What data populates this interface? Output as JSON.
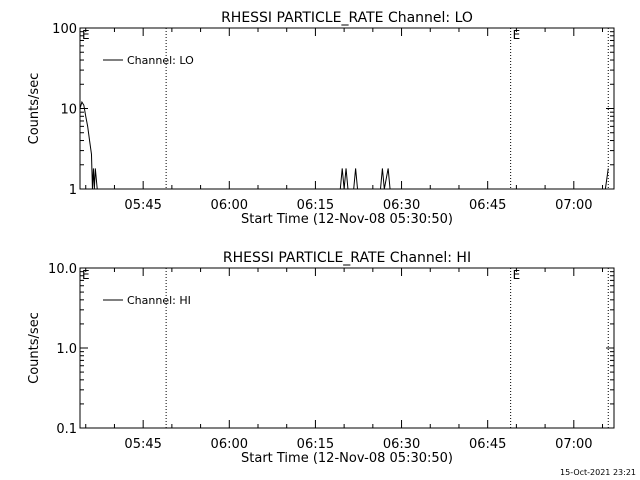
{
  "footer": {
    "timestamp": "15-Oct-2021 23:21"
  },
  "chart_data": [
    {
      "type": "line",
      "title": "RHESSI PARTICLE_RATE Channel: LO",
      "xlabel": "Start Time (12-Nov-08 05:30:50)",
      "ylabel": "Counts/sec",
      "x_ticks": [
        "05:45",
        "06:00",
        "06:15",
        "06:30",
        "06:45",
        "07:00"
      ],
      "y_ticks": [
        "1",
        "10",
        "100"
      ],
      "y_scale": "log",
      "xlim": [
        "05:34:00",
        "07:07:00"
      ],
      "ylim": [
        1,
        100
      ],
      "legend": "top-left",
      "series": [
        {
          "name": "Channel: LO",
          "color": "#000000",
          "points": [
            [
              "05:34:00",
              10
            ],
            [
              "05:34:20",
              12
            ],
            [
              "05:34:40",
              11
            ],
            [
              "05:35:00",
              8
            ],
            [
              "05:35:20",
              6
            ],
            [
              "05:35:40",
              4
            ],
            [
              "05:36:00",
              2.7
            ],
            [
              "05:36:10",
              1
            ],
            [
              "05:36:20",
              1.8
            ],
            [
              "05:36:30",
              1
            ],
            [
              "05:36:40",
              1.8
            ],
            [
              "05:37:00",
              1
            ],
            [
              "06:19:20",
              1
            ],
            [
              "06:19:40",
              1.8
            ],
            [
              "06:20:00",
              1
            ],
            [
              "06:20:20",
              1.8
            ],
            [
              "06:20:40",
              1
            ],
            [
              "06:21:40",
              1
            ],
            [
              "06:22:00",
              1.8
            ],
            [
              "06:22:20",
              1
            ],
            [
              "06:26:20",
              1
            ],
            [
              "06:26:40",
              1.8
            ],
            [
              "06:27:00",
              1
            ],
            [
              "06:27:40",
              1.8
            ],
            [
              "06:28:00",
              1
            ],
            [
              "07:05:30",
              1
            ],
            [
              "07:06:00",
              1.8
            ]
          ]
        }
      ],
      "markers": [
        {
          "time": "05:49:00",
          "label": ""
        },
        {
          "time": "06:49:00",
          "label": "E"
        },
        {
          "time": "07:06:00",
          "label": ""
        }
      ],
      "start_marker_label": "E"
    },
    {
      "type": "line",
      "title": "RHESSI PARTICLE_RATE Channel: HI",
      "xlabel": "Start Time (12-Nov-08 05:30:50)",
      "ylabel": "Counts/sec",
      "x_ticks": [
        "05:45",
        "06:00",
        "06:15",
        "06:30",
        "06:45",
        "07:00"
      ],
      "y_ticks": [
        "0.1",
        "1.0",
        "10.0"
      ],
      "y_scale": "log",
      "xlim": [
        "05:34:00",
        "07:07:00"
      ],
      "ylim": [
        0.1,
        10
      ],
      "legend": "top-left",
      "series": [
        {
          "name": "Channel: HI",
          "color": "#000000",
          "points": []
        }
      ],
      "markers": [
        {
          "time": "05:49:00",
          "label": ""
        },
        {
          "time": "06:49:00",
          "label": "E"
        },
        {
          "time": "07:06:00",
          "label": ""
        }
      ],
      "start_marker_label": "E"
    }
  ]
}
